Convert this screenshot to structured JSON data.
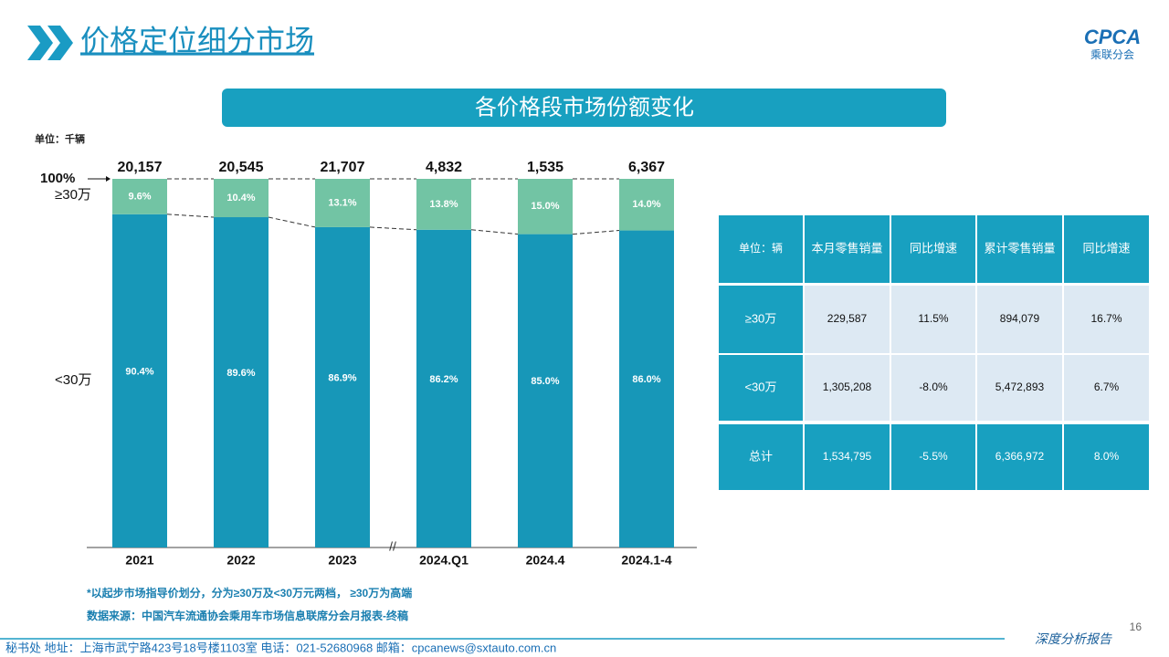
{
  "header": {
    "title": "价格定位细分市场",
    "logo": "CPCA",
    "logo_sub": "乘联分会",
    "page": "16",
    "tag": "深度分析报告"
  },
  "chart_data": {
    "type": "bar",
    "stacked": true,
    "title": "各价格段市场份额变化",
    "unit": "单位：千辆",
    "categories": [
      "2021",
      "2022",
      "2023",
      "2024.Q1",
      "2024.4",
      "2024.1-4"
    ],
    "totals": {
      "values": [
        20157,
        20545,
        21707,
        4832,
        1535,
        6367
      ],
      "value_labels": [
        "20,157",
        "20,545",
        "21,707",
        "4,832",
        "1,535",
        "6,367"
      ]
    },
    "series": [
      {
        "name": "≥30万",
        "color": "#72c4a4",
        "values": [
          9.6,
          10.4,
          13.1,
          13.8,
          15.0,
          14.0
        ],
        "value_labels": [
          "9.6%",
          "10.4%",
          "13.1%",
          "13.8%",
          "15.0%",
          "14.0%"
        ]
      },
      {
        "name": "<30万",
        "color": "#1797b8",
        "values": [
          90.4,
          89.6,
          86.9,
          86.2,
          85.0,
          86.0
        ],
        "value_labels": [
          "90.4%",
          "89.6%",
          "86.9%",
          "86.2%",
          "85.0%",
          "86.0%"
        ]
      }
    ],
    "ylim": [
      0,
      100
    ],
    "yticks": [
      {
        "value": 100,
        "label": "100%"
      }
    ]
  },
  "table": {
    "header": [
      "单位：辆",
      "本月零售销量",
      "同比增速",
      "累计零售销量",
      "同比增速"
    ],
    "rows": [
      [
        "≥30万",
        "229,587",
        "11.5%",
        "894,079",
        "16.7%"
      ],
      [
        "<30万",
        "1,305,208",
        "-8.0%",
        "5,472,893",
        "6.7%"
      ],
      [
        "总计",
        "1,534,795",
        "-5.5%",
        "6,366,972",
        "8.0%"
      ]
    ]
  },
  "notes": [
    "*以起步市场指导价划分，分为≥30万及<30万元两档，  ≥30万为高端",
    "数据来源：中国汽车流通协会乘用车市场信息联席分会月报表-终稿"
  ],
  "footer": "秘书处   地址：上海市武宁路423号18号楼1103室    电话：021-52680968    邮箱：cpcanews@sxtauto.com.cn"
}
